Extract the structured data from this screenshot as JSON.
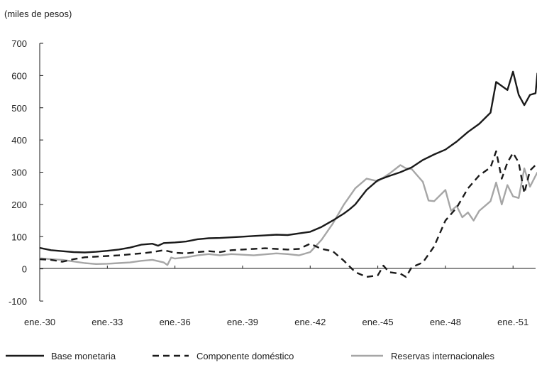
{
  "chart_data": {
    "type": "line",
    "unit_label": "(miles de pesos)",
    "ylim": [
      -100,
      700
    ],
    "y_ticks": [
      -100,
      0,
      100,
      200,
      300,
      400,
      500,
      600,
      700
    ],
    "xlim": [
      "1930-01",
      "1952-01"
    ],
    "x_ticks": [
      {
        "date": "1930-01",
        "label": "ene.-30"
      },
      {
        "date": "1933-01",
        "label": "ene.-33"
      },
      {
        "date": "1936-01",
        "label": "ene.-36"
      },
      {
        "date": "1939-01",
        "label": "ene.-39"
      },
      {
        "date": "1942-01",
        "label": "ene.-42"
      },
      {
        "date": "1945-01",
        "label": "ene.-45"
      },
      {
        "date": "1948-01",
        "label": "ene.-48"
      },
      {
        "date": "1951-01",
        "label": "ene.-51"
      }
    ],
    "grid": false,
    "legend_position": "bottom",
    "series": [
      {
        "name": "Base monetaria",
        "color": "#1a1a1a",
        "dash": "solid",
        "points": [
          [
            "1930-01",
            65
          ],
          [
            "1930-07",
            58
          ],
          [
            "1931-01",
            55
          ],
          [
            "1931-07",
            52
          ],
          [
            "1932-01",
            51
          ],
          [
            "1932-07",
            53
          ],
          [
            "1933-01",
            56
          ],
          [
            "1933-07",
            60
          ],
          [
            "1934-01",
            66
          ],
          [
            "1934-07",
            75
          ],
          [
            "1935-01",
            78
          ],
          [
            "1935-04",
            72
          ],
          [
            "1935-07",
            80
          ],
          [
            "1936-01",
            82
          ],
          [
            "1936-07",
            85
          ],
          [
            "1937-01",
            92
          ],
          [
            "1937-07",
            95
          ],
          [
            "1938-01",
            96
          ],
          [
            "1938-07",
            98
          ],
          [
            "1939-01",
            100
          ],
          [
            "1939-07",
            102
          ],
          [
            "1940-01",
            104
          ],
          [
            "1940-07",
            106
          ],
          [
            "1941-01",
            105
          ],
          [
            "1941-07",
            110
          ],
          [
            "1942-01",
            115
          ],
          [
            "1942-07",
            130
          ],
          [
            "1943-01",
            150
          ],
          [
            "1943-07",
            172
          ],
          [
            "1943-10",
            185
          ],
          [
            "1944-01",
            200
          ],
          [
            "1944-07",
            245
          ],
          [
            "1945-01",
            275
          ],
          [
            "1945-07",
            288
          ],
          [
            "1946-01",
            300
          ],
          [
            "1946-07",
            315
          ],
          [
            "1947-01",
            338
          ],
          [
            "1947-07",
            355
          ],
          [
            "1948-01",
            370
          ],
          [
            "1948-07",
            395
          ],
          [
            "1949-01",
            425
          ],
          [
            "1949-07",
            450
          ],
          [
            "1950-01",
            485
          ],
          [
            "1950-04",
            580
          ],
          [
            "1950-10",
            555
          ],
          [
            "1951-01",
            612
          ],
          [
            "1951-04",
            540
          ],
          [
            "1951-07",
            508
          ],
          [
            "1951-10",
            540
          ],
          [
            "1952-01",
            545
          ],
          [
            "1952-02",
            608
          ]
        ]
      },
      {
        "name": "Componente doméstico",
        "color": "#1a1a1a",
        "dash": "dashed",
        "points": [
          [
            "1930-01",
            30
          ],
          [
            "1930-07",
            28
          ],
          [
            "1931-01",
            22
          ],
          [
            "1931-07",
            30
          ],
          [
            "1932-01",
            36
          ],
          [
            "1932-07",
            38
          ],
          [
            "1933-01",
            40
          ],
          [
            "1933-07",
            42
          ],
          [
            "1934-01",
            45
          ],
          [
            "1934-07",
            48
          ],
          [
            "1935-01",
            52
          ],
          [
            "1935-07",
            58
          ],
          [
            "1936-01",
            50
          ],
          [
            "1936-07",
            48
          ],
          [
            "1937-01",
            52
          ],
          [
            "1937-07",
            55
          ],
          [
            "1938-01",
            52
          ],
          [
            "1938-07",
            58
          ],
          [
            "1939-01",
            60
          ],
          [
            "1939-07",
            62
          ],
          [
            "1940-01",
            64
          ],
          [
            "1940-07",
            62
          ],
          [
            "1941-01",
            60
          ],
          [
            "1941-07",
            62
          ],
          [
            "1942-01",
            78
          ],
          [
            "1942-07",
            62
          ],
          [
            "1943-01",
            55
          ],
          [
            "1943-07",
            25
          ],
          [
            "1944-01",
            -10
          ],
          [
            "1944-07",
            -25
          ],
          [
            "1945-01",
            -20
          ],
          [
            "1945-04",
            10
          ],
          [
            "1945-07",
            -10
          ],
          [
            "1946-01",
            -15
          ],
          [
            "1946-04",
            -25
          ],
          [
            "1946-07",
            5
          ],
          [
            "1947-01",
            20
          ],
          [
            "1947-07",
            70
          ],
          [
            "1948-01",
            150
          ],
          [
            "1948-07",
            190
          ],
          [
            "1949-01",
            250
          ],
          [
            "1949-07",
            290
          ],
          [
            "1950-01",
            315
          ],
          [
            "1950-04",
            365
          ],
          [
            "1950-07",
            280
          ],
          [
            "1950-10",
            330
          ],
          [
            "1951-01",
            360
          ],
          [
            "1951-04",
            330
          ],
          [
            "1951-07",
            235
          ],
          [
            "1951-10",
            305
          ],
          [
            "1952-02",
            328
          ]
        ]
      },
      {
        "name": "Reservas internacionales",
        "color": "#a6a6a6",
        "dash": "solid",
        "points": [
          [
            "1930-01",
            33
          ],
          [
            "1930-07",
            30
          ],
          [
            "1931-01",
            28
          ],
          [
            "1931-07",
            23
          ],
          [
            "1932-01",
            18
          ],
          [
            "1932-07",
            15
          ],
          [
            "1933-01",
            16
          ],
          [
            "1933-07",
            18
          ],
          [
            "1934-01",
            20
          ],
          [
            "1934-07",
            25
          ],
          [
            "1935-01",
            28
          ],
          [
            "1935-07",
            20
          ],
          [
            "1935-09",
            12
          ],
          [
            "1935-11",
            35
          ],
          [
            "1936-01",
            32
          ],
          [
            "1936-07",
            36
          ],
          [
            "1937-01",
            42
          ],
          [
            "1937-07",
            46
          ],
          [
            "1938-01",
            42
          ],
          [
            "1938-07",
            46
          ],
          [
            "1939-01",
            44
          ],
          [
            "1939-07",
            42
          ],
          [
            "1940-01",
            45
          ],
          [
            "1940-07",
            48
          ],
          [
            "1941-01",
            46
          ],
          [
            "1941-07",
            42
          ],
          [
            "1942-01",
            52
          ],
          [
            "1942-07",
            90
          ],
          [
            "1943-01",
            140
          ],
          [
            "1943-07",
            200
          ],
          [
            "1944-01",
            250
          ],
          [
            "1944-07",
            280
          ],
          [
            "1945-01",
            272
          ],
          [
            "1945-07",
            295
          ],
          [
            "1946-01",
            322
          ],
          [
            "1946-04",
            312
          ],
          [
            "1946-07",
            310
          ],
          [
            "1947-01",
            270
          ],
          [
            "1947-04",
            212
          ],
          [
            "1947-07",
            210
          ],
          [
            "1948-01",
            245
          ],
          [
            "1948-04",
            180
          ],
          [
            "1948-07",
            195
          ],
          [
            "1948-10",
            160
          ],
          [
            "1949-01",
            175
          ],
          [
            "1949-04",
            150
          ],
          [
            "1949-07",
            180
          ],
          [
            "1950-01",
            210
          ],
          [
            "1950-04",
            268
          ],
          [
            "1950-07",
            200
          ],
          [
            "1950-10",
            260
          ],
          [
            "1951-01",
            225
          ],
          [
            "1951-04",
            220
          ],
          [
            "1951-07",
            312
          ],
          [
            "1951-10",
            255
          ],
          [
            "1952-02",
            300
          ]
        ]
      }
    ]
  }
}
